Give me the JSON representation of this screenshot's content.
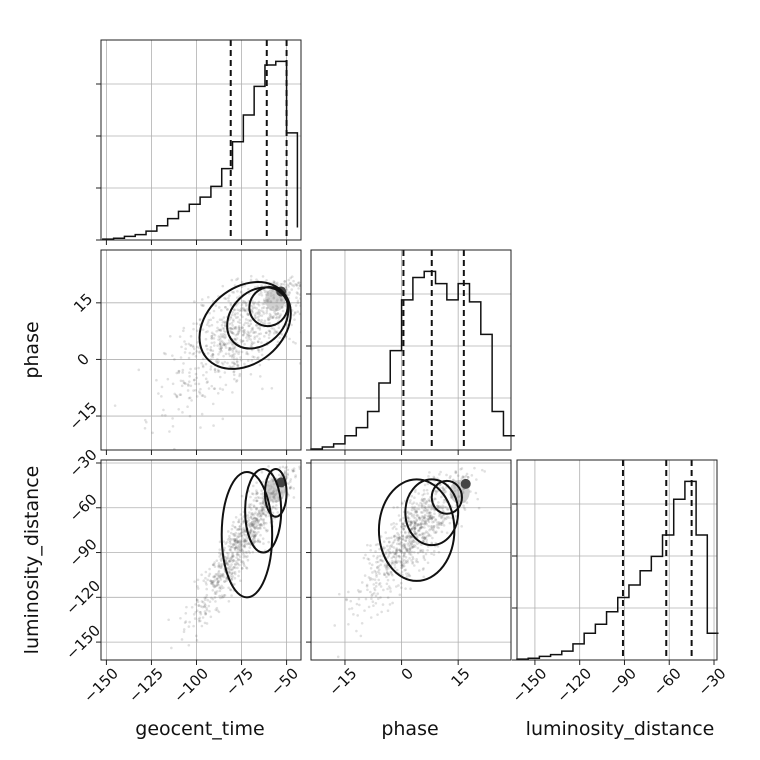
{
  "chart_data": {
    "type": "corner",
    "grid": true,
    "parameters": [
      {
        "name": "geocent_time",
        "label": "geocent_time",
        "range": [
          -153,
          -42
        ],
        "ticks": [
          -150,
          -125,
          -100,
          -75,
          -50
        ]
      },
      {
        "name": "phase",
        "label": "phase",
        "range": [
          -24,
          29
        ],
        "ticks": [
          -15,
          0,
          15
        ]
      },
      {
        "name": "luminosity_distance",
        "label": "luminosity_distance",
        "range": [
          -162,
          -28
        ],
        "ticks": [
          -150,
          -120,
          -90,
          -60,
          -30
        ]
      }
    ],
    "marginals": [
      {
        "parameter": "geocent_time",
        "bin_edges": [
          -152,
          -146,
          -140,
          -134,
          -128,
          -122,
          -116,
          -110,
          -104,
          -98,
          -92,
          -86,
          -80,
          -74,
          -68,
          -62,
          -56,
          -50,
          -44
        ],
        "counts": [
          0.5,
          1,
          2,
          3,
          5,
          8,
          12,
          16,
          20,
          24,
          30,
          40,
          55,
          70,
          86,
          98,
          100,
          60,
          7
        ],
        "quantiles": [
          -81,
          -61,
          -50
        ]
      },
      {
        "parameter": "phase",
        "bin_edges": [
          -24,
          -21,
          -18,
          -15,
          -12,
          -9,
          -6,
          -3,
          0,
          3,
          6,
          9,
          12,
          15,
          18,
          21,
          24,
          27,
          30
        ],
        "counts": [
          0.5,
          1.5,
          3,
          7,
          11,
          19,
          33,
          49,
          74,
          85,
          88,
          82,
          74,
          82,
          73,
          57,
          19,
          7
        ],
        "quantiles": [
          0.5,
          8,
          16.5
        ]
      },
      {
        "parameter": "luminosity_distance",
        "bin_edges": [
          -162,
          -154.5,
          -147,
          -139.5,
          -132,
          -124.5,
          -117,
          -109.5,
          -102,
          -94.5,
          -87,
          -79.5,
          -72,
          -64.5,
          -57,
          -49.5,
          -42,
          -34.5,
          -27
        ],
        "counts": [
          0.5,
          1,
          2,
          3,
          5,
          9,
          15,
          20,
          27,
          35,
          42,
          50,
          58,
          70,
          90,
          100,
          70,
          15
        ],
        "quantiles": [
          -91,
          -62,
          -45
        ]
      }
    ],
    "joints": [
      {
        "x": "geocent_time",
        "y": "phase",
        "mode": [
          -53,
          18
        ],
        "contour_levels": [
          {
            "cx": -60,
            "cy": 14,
            "rx": 11,
            "ry": 5,
            "angle_deg": 55
          },
          {
            "cx": -66,
            "cy": 11,
            "rx": 19,
            "ry": 7,
            "angle_deg": 45
          },
          {
            "cx": -73,
            "cy": 9,
            "rx": 28,
            "ry": 10,
            "angle_deg": 40
          }
        ],
        "correlation": 0.75
      },
      {
        "x": "geocent_time",
        "y": "luminosity_distance",
        "mode": [
          -53,
          -43
        ],
        "contour_levels": [
          {
            "cx": -56,
            "cy": -50,
            "rx": 6,
            "ry": 16,
            "angle_deg": 0
          },
          {
            "cx": -63,
            "cy": -62,
            "rx": 10,
            "ry": 28,
            "angle_deg": 0
          },
          {
            "cx": -72,
            "cy": -78,
            "rx": 14,
            "ry": 42,
            "angle_deg": 0
          }
        ],
        "correlation": 0.95
      },
      {
        "x": "phase",
        "y": "luminosity_distance",
        "mode": [
          17,
          -44
        ],
        "contour_levels": [
          {
            "cx": 12,
            "cy": -53,
            "rx": 4,
            "ry": 11,
            "angle_deg": 0
          },
          {
            "cx": 8,
            "cy": -63,
            "rx": 7,
            "ry": 22,
            "angle_deg": 0
          },
          {
            "cx": 4,
            "cy": -75,
            "rx": 10,
            "ry": 34,
            "angle_deg": 0
          }
        ],
        "correlation": 0.85
      }
    ]
  }
}
